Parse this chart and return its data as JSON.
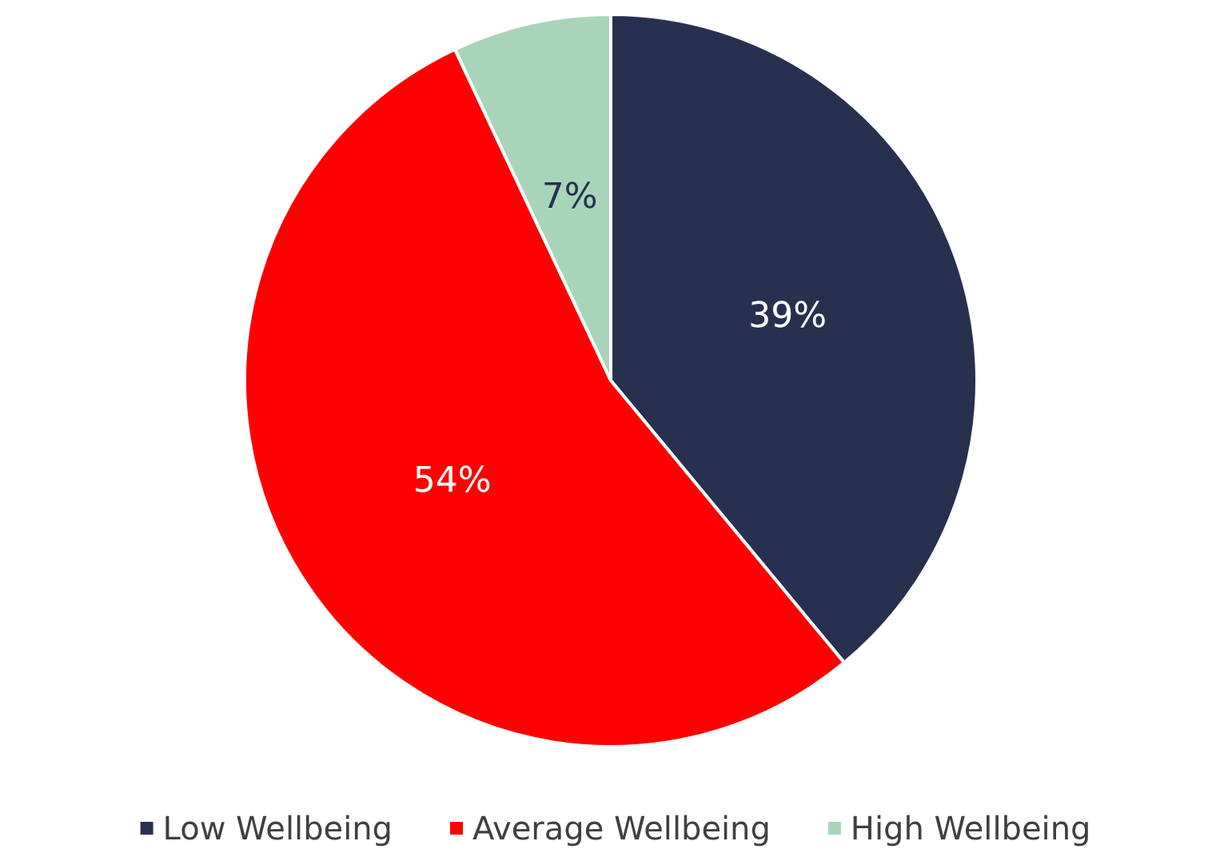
{
  "chart_data": {
    "type": "pie",
    "categories": [
      "Low Wellbeing",
      "Average Wellbeing",
      "High Wellbeing"
    ],
    "values": [
      39,
      54,
      7
    ],
    "colors": [
      "#283050",
      "#ff0000",
      "#a8d5ba"
    ],
    "value_labels": [
      "39%",
      "54%",
      "7%"
    ],
    "legend": "bottom"
  }
}
